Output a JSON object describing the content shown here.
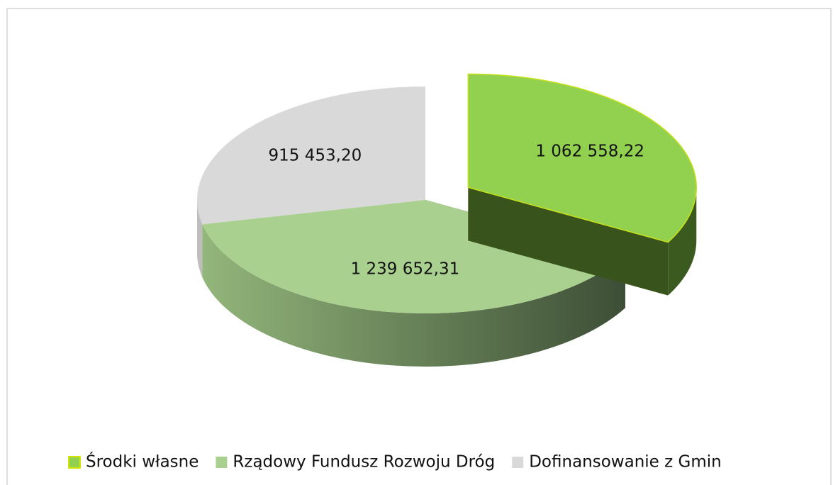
{
  "chart_data": {
    "type": "pie3d",
    "categories": [
      "Środki własne",
      "Rządowy Fundusz Rozwoju Dróg",
      "Dofinansowanie z Gmin"
    ],
    "values": [
      1062558.22,
      1239652.31,
      915453.2
    ],
    "value_labels": [
      "1 062 558,22",
      "1 239 652,31",
      "915 453,20"
    ],
    "colors": [
      "#92d050",
      "#a9d08e",
      "#d9d9d9"
    ],
    "exploded": [
      true,
      false,
      false
    ],
    "legend": "bottom"
  }
}
